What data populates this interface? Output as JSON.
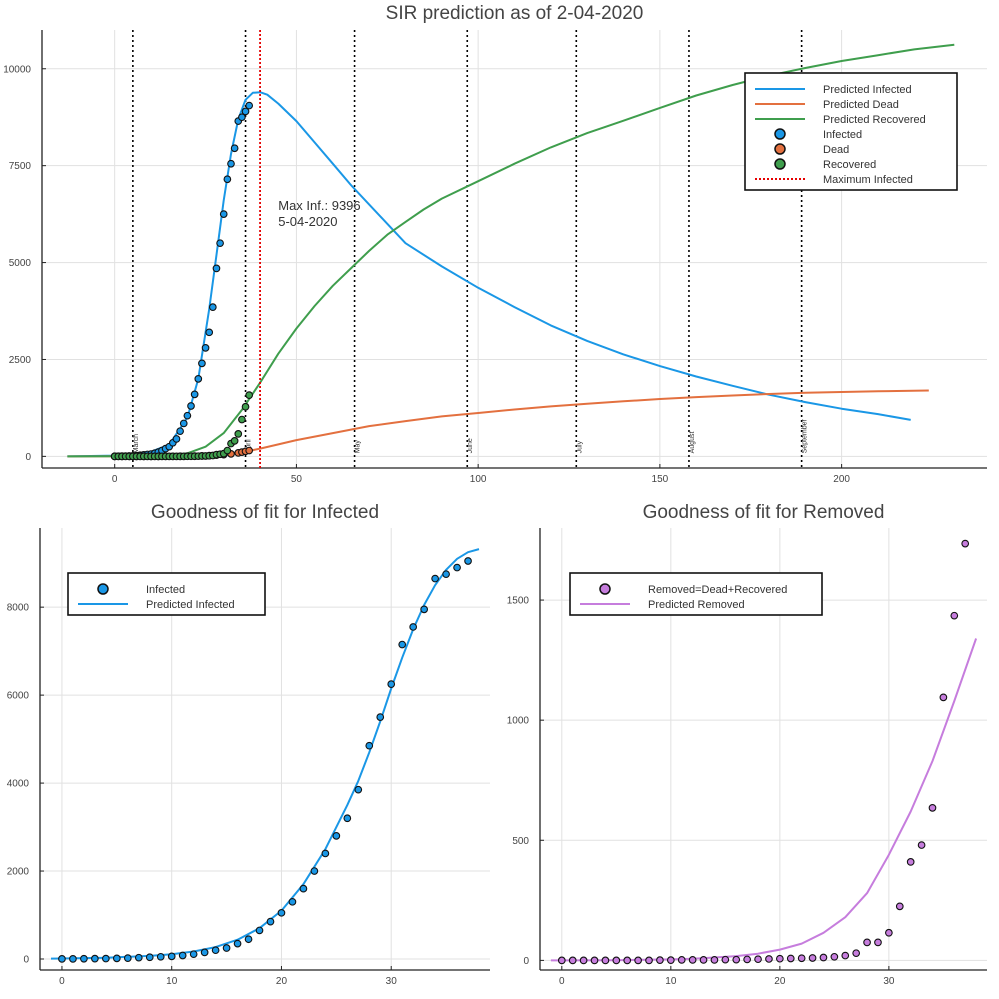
{
  "colors": {
    "infected": "#1a97e6",
    "dead": "#e3703f",
    "recovered": "#3f9e4d",
    "removed": "#c67ddd",
    "max_line": "#e60000",
    "month_line": "#000000"
  },
  "chart_data": [
    {
      "id": "sir",
      "type": "line",
      "title": "SIR prediction as of 2-04-2020",
      "xlim": [
        -20,
        240
      ],
      "ylim": [
        -300,
        11000
      ],
      "xticks": [
        0,
        50,
        100,
        150,
        200
      ],
      "yticks": [
        0,
        2500,
        5000,
        7500,
        10000
      ],
      "grid": true,
      "legend_position": "top-right",
      "series": [
        {
          "name": "Predicted Infected",
          "kind": "line",
          "color": "infected",
          "x": [
            -13,
            0,
            10,
            15,
            20,
            23,
            26,
            28,
            30,
            32,
            34,
            36,
            38,
            40,
            42,
            45,
            50,
            55,
            60,
            65,
            70,
            75,
            80,
            90,
            100,
            110,
            120,
            130,
            140,
            150,
            160,
            170,
            180,
            190,
            200,
            210,
            219
          ],
          "y": [
            0,
            20,
            120,
            300,
            1000,
            2000,
            3800,
            5200,
            6600,
            7800,
            8700,
            9200,
            9380,
            9396,
            9330,
            9100,
            8650,
            8100,
            7550,
            7000,
            6500,
            6000,
            5500,
            4900,
            4350,
            3850,
            3380,
            2980,
            2630,
            2330,
            2060,
            1820,
            1590,
            1400,
            1230,
            1090,
            940
          ]
        },
        {
          "name": "Predicted Dead",
          "kind": "line",
          "color": "dead",
          "x": [
            -13,
            20,
            30,
            35,
            40,
            45,
            50,
            60,
            70,
            80,
            90,
            100,
            110,
            120,
            130,
            140,
            150,
            160,
            170,
            180,
            190,
            200,
            210,
            224
          ],
          "y": [
            0,
            5,
            40,
            100,
            200,
            310,
            420,
            600,
            780,
            910,
            1030,
            1120,
            1210,
            1290,
            1360,
            1420,
            1480,
            1530,
            1570,
            1610,
            1640,
            1660,
            1680,
            1700
          ]
        },
        {
          "name": "Predicted Recovered",
          "kind": "line",
          "color": "recovered",
          "x": [
            -13,
            0,
            15,
            20,
            25,
            30,
            35,
            40,
            45,
            50,
            55,
            60,
            65,
            70,
            75,
            80,
            85,
            90,
            100,
            110,
            120,
            130,
            140,
            150,
            160,
            170,
            180,
            190,
            200,
            210,
            220,
            231
          ],
          "y": [
            0,
            5,
            20,
            80,
            250,
            600,
            1200,
            1900,
            2650,
            3300,
            3880,
            4400,
            4850,
            5300,
            5720,
            6050,
            6370,
            6650,
            7100,
            7550,
            7970,
            8340,
            8660,
            8990,
            9310,
            9580,
            9820,
            10020,
            10200,
            10350,
            10500,
            10620
          ]
        },
        {
          "name": "Infected",
          "kind": "scatter",
          "color": "infected",
          "x": [
            0,
            1,
            2,
            3,
            4,
            5,
            6,
            7,
            8,
            9,
            10,
            11,
            12,
            13,
            14,
            15,
            16,
            17,
            18,
            19,
            20,
            21,
            22,
            23,
            24,
            25,
            26,
            27,
            28,
            29,
            30,
            31,
            32,
            33,
            34,
            35,
            36,
            37
          ],
          "y": [
            3,
            3,
            6,
            8,
            10,
            15,
            20,
            30,
            40,
            50,
            60,
            80,
            110,
            150,
            200,
            250,
            350,
            450,
            650,
            850,
            1050,
            1300,
            1600,
            2000,
            2400,
            2800,
            3200,
            3850,
            4850,
            5500,
            6250,
            7150,
            7550,
            7950,
            8650,
            8750,
            8900,
            9050
          ]
        },
        {
          "name": "Dead",
          "kind": "scatter",
          "color": "dead",
          "x": [
            0,
            2,
            4,
            6,
            8,
            10,
            12,
            14,
            16,
            18,
            20,
            22,
            24,
            26,
            28,
            30,
            32,
            34,
            35,
            36,
            37
          ],
          "y": [
            0,
            0,
            0,
            0,
            0,
            0,
            0,
            1,
            2,
            3,
            5,
            8,
            12,
            20,
            30,
            45,
            65,
            90,
            110,
            130,
            150
          ]
        },
        {
          "name": "Recovered",
          "kind": "scatter",
          "color": "recovered",
          "x": [
            0,
            1,
            2,
            3,
            4,
            5,
            6,
            7,
            8,
            9,
            10,
            11,
            12,
            13,
            14,
            15,
            16,
            17,
            18,
            19,
            20,
            21,
            22,
            23,
            24,
            25,
            26,
            27,
            28,
            29,
            30,
            31,
            32,
            33,
            34,
            35,
            36,
            37
          ],
          "y": [
            0,
            0,
            0,
            0,
            0,
            0,
            0,
            0,
            0,
            0,
            0,
            0,
            0,
            0,
            0,
            0,
            0,
            0,
            0,
            0,
            1,
            2,
            3,
            5,
            8,
            10,
            15,
            22,
            45,
            55,
            70,
            150,
            330,
            400,
            580,
            950,
            1280,
            1580
          ]
        },
        {
          "name": "Maximum Infected",
          "kind": "vline",
          "color": "max_line",
          "x": 40
        }
      ],
      "month_lines": [
        {
          "x": 5,
          "label": "March"
        },
        {
          "x": 36,
          "label": "April"
        },
        {
          "x": 66,
          "label": "May"
        },
        {
          "x": 97,
          "label": "June"
        },
        {
          "x": 127,
          "label": "July"
        },
        {
          "x": 158,
          "label": "August"
        },
        {
          "x": 189,
          "label": "September"
        }
      ],
      "annotation": {
        "x": 45,
        "y": 6100,
        "line1": "Max Inf.: 9396",
        "line2": "5-04-2020"
      }
    },
    {
      "id": "fit_infected",
      "type": "scatter",
      "title": "Goodness of fit for Infected",
      "xlim": [
        -2,
        39
      ],
      "ylim": [
        -250,
        9800
      ],
      "xticks": [
        0,
        10,
        20,
        30
      ],
      "yticks": [
        0,
        2000,
        4000,
        6000,
        8000
      ],
      "grid": true,
      "legend_position": "top-left",
      "series": [
        {
          "name": "Infected",
          "kind": "scatter",
          "color": "infected",
          "x": [
            0,
            1,
            2,
            3,
            4,
            5,
            6,
            7,
            8,
            9,
            10,
            11,
            12,
            13,
            14,
            15,
            16,
            17,
            18,
            19,
            20,
            21,
            22,
            23,
            24,
            25,
            26,
            27,
            28,
            29,
            30,
            31,
            32,
            33,
            34,
            35,
            36,
            37
          ],
          "y": [
            3,
            3,
            6,
            8,
            10,
            15,
            20,
            30,
            40,
            50,
            60,
            80,
            110,
            150,
            200,
            250,
            350,
            450,
            650,
            850,
            1050,
            1300,
            1600,
            2000,
            2400,
            2800,
            3200,
            3850,
            4850,
            5500,
            6250,
            7150,
            7550,
            7950,
            8650,
            8750,
            8900,
            9050
          ]
        },
        {
          "name": "Predicted Infected",
          "kind": "line",
          "color": "infected",
          "x": [
            -1,
            0,
            4,
            8,
            10,
            12,
            14,
            16,
            18,
            20,
            22,
            24,
            26,
            27,
            28,
            29,
            30,
            31,
            32,
            33,
            34,
            35,
            36,
            37,
            38
          ],
          "y": [
            10,
            12,
            30,
            70,
            110,
            170,
            270,
            440,
            700,
            1100,
            1700,
            2500,
            3500,
            4050,
            4700,
            5400,
            6150,
            6850,
            7500,
            8050,
            8500,
            8850,
            9100,
            9250,
            9320
          ]
        }
      ]
    },
    {
      "id": "fit_removed",
      "type": "scatter",
      "title": "Goodness of fit for Removed",
      "xlim": [
        -2,
        39
      ],
      "ylim": [
        -40,
        1800
      ],
      "xticks": [
        0,
        10,
        20,
        30
      ],
      "yticks": [
        0,
        500,
        1000,
        1500
      ],
      "grid": true,
      "legend_position": "top-left",
      "series": [
        {
          "name": "Removed=Dead+Recovered",
          "kind": "scatter",
          "color": "removed",
          "x": [
            0,
            1,
            2,
            3,
            4,
            5,
            6,
            7,
            8,
            9,
            10,
            11,
            12,
            13,
            14,
            15,
            16,
            17,
            18,
            19,
            20,
            21,
            22,
            23,
            24,
            25,
            26,
            27,
            28,
            29,
            30,
            31,
            32,
            33,
            34,
            35,
            36,
            37
          ],
          "y": [
            0,
            0,
            0,
            0,
            0,
            0,
            0,
            0,
            0,
            1,
            1,
            2,
            2,
            2,
            2,
            3,
            3,
            4,
            5,
            6,
            7,
            8,
            9,
            10,
            12,
            15,
            20,
            30,
            75,
            75,
            115,
            225,
            410,
            480,
            635,
            1095,
            1435,
            1735
          ]
        },
        {
          "name": "Predicted Removed",
          "kind": "line",
          "color": "removed",
          "x": [
            -1,
            0,
            5,
            10,
            12,
            14,
            16,
            18,
            20,
            22,
            24,
            26,
            28,
            30,
            32,
            34,
            36,
            38
          ],
          "y": [
            0,
            0,
            1,
            4,
            7,
            12,
            18,
            28,
            45,
            70,
            115,
            180,
            280,
            440,
            620,
            830,
            1080,
            1340
          ]
        }
      ]
    }
  ]
}
